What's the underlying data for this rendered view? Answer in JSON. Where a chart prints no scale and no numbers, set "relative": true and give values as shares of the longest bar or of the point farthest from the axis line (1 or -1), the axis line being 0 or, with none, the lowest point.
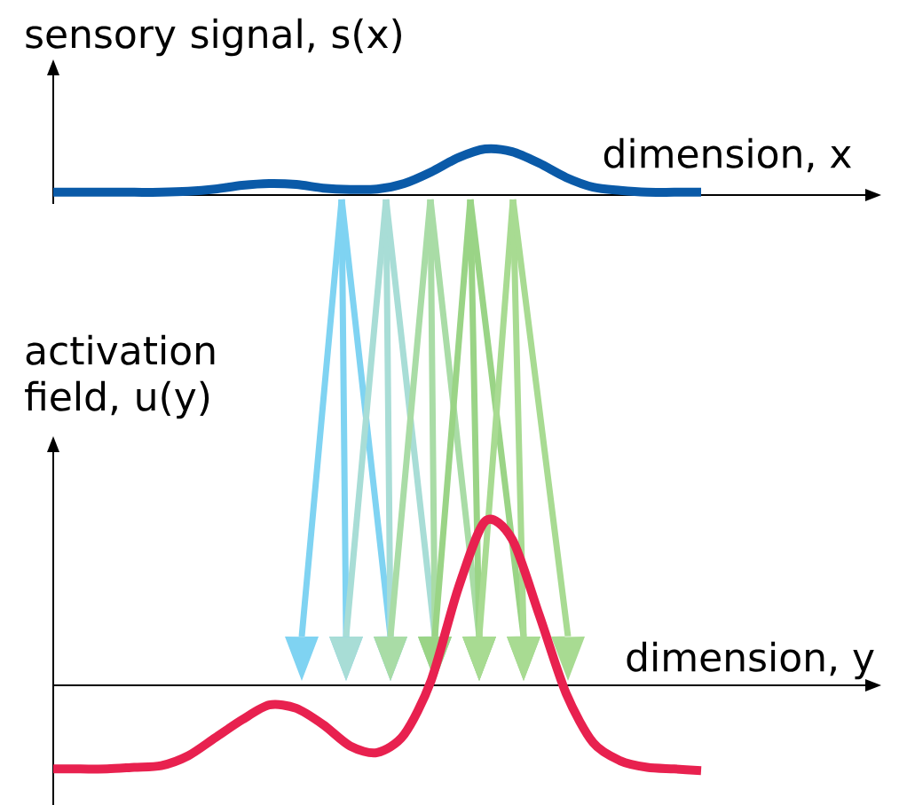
{
  "chart_data": [
    {
      "type": "line",
      "relative": true,
      "ylabel": "sensory signal, s(x)",
      "xlabel": "dimension, x",
      "color": "#0a5aa8",
      "categories": [
        null,
        null,
        null,
        null,
        null,
        null,
        null,
        null,
        null,
        null,
        null,
        null,
        null,
        null,
        null,
        null,
        null,
        null,
        null,
        null,
        null,
        null,
        null,
        null,
        null
      ],
      "values": [
        0.06,
        0.06,
        0.06,
        0.06,
        0.06,
        0.08,
        0.13,
        0.21,
        0.25,
        0.23,
        0.15,
        0.12,
        0.13,
        0.25,
        0.5,
        0.81,
        1,
        0.94,
        0.69,
        0.38,
        0.17,
        0.1,
        0.06,
        0.06,
        0.06
      ]
    },
    {
      "type": "line",
      "relative": true,
      "ylabel": "activation field, u(y)",
      "xlabel": "dimension, y",
      "color": "#e8214f",
      "categories": [
        null,
        null,
        null,
        null,
        null,
        null,
        null,
        null,
        null,
        null,
        null,
        null,
        null,
        null,
        null,
        null,
        null,
        null,
        null,
        null,
        null,
        null,
        null,
        null,
        null
      ],
      "values": [
        -0.51,
        -0.51,
        -0.51,
        -0.5,
        -0.49,
        -0.43,
        -0.32,
        -0.21,
        -0.12,
        -0.14,
        -0.24,
        -0.37,
        -0.41,
        -0.3,
        0.03,
        0.59,
        1,
        0.89,
        0.43,
        -0.05,
        -0.35,
        -0.46,
        -0.5,
        -0.51,
        -0.52
      ]
    }
  ]
}
